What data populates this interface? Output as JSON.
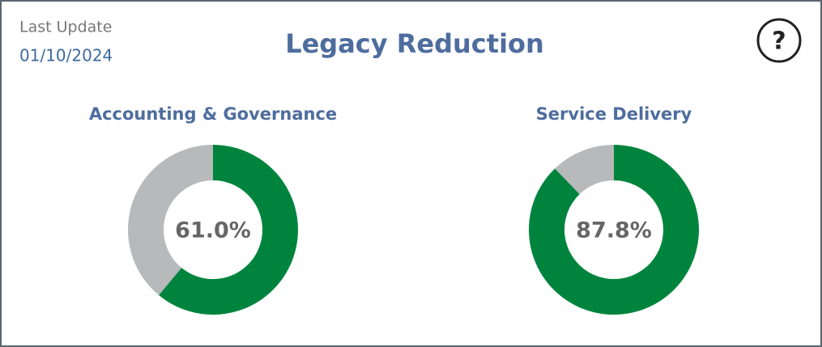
{
  "header": {
    "last_update_label": "Last Update",
    "last_update": "01/10/2024",
    "title": "Legacy Reduction",
    "help": "?"
  },
  "chart_data": [
    {
      "type": "donut",
      "title": "Accounting & Governance",
      "values": [
        61.0,
        39.0
      ],
      "value_labels": [
        "61.0%",
        null
      ],
      "colors": [
        "#00843d",
        "#b7b9bb"
      ]
    },
    {
      "type": "donut",
      "title": "Service Delivery",
      "values": [
        87.8,
        12.2
      ],
      "value_labels": [
        "87.8%",
        null
      ],
      "colors": [
        "#00843d",
        "#b7b9bb"
      ]
    }
  ]
}
